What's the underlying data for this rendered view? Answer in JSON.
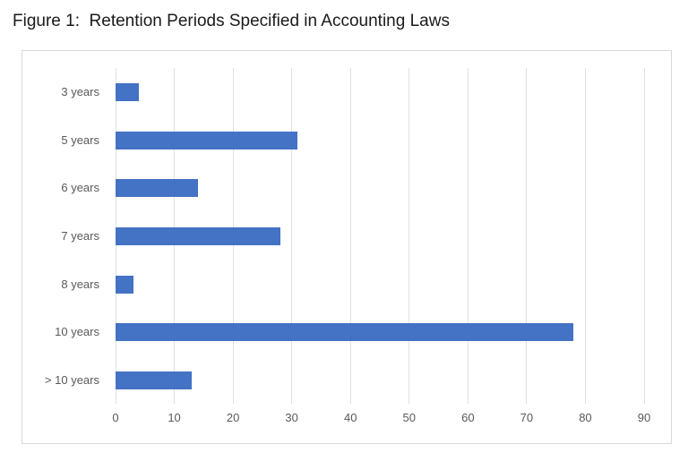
{
  "title": "Figure 1:  Retention Periods Specified in Accounting Laws",
  "chart_data": {
    "type": "bar",
    "orientation": "horizontal",
    "title": "Figure 1:  Retention Periods Specified in Accounting Laws",
    "categories": [
      "3 years",
      "5 years",
      "6 years",
      "7 years",
      "8 years",
      "10 years",
      "> 10 years"
    ],
    "values": [
      4,
      31,
      14,
      28,
      3,
      78,
      13
    ],
    "x_ticks": [
      0,
      10,
      20,
      30,
      40,
      50,
      60,
      70,
      80,
      90
    ],
    "xlim": [
      0,
      90
    ],
    "xlabel": "",
    "ylabel": "",
    "grid": true,
    "legend": false,
    "colors": {
      "bar": "#4472C4",
      "gridline": "#e0e0e0",
      "chart_border": "#d9d9d9",
      "axis_label": "#595959",
      "title": "#1a1a1a"
    }
  }
}
